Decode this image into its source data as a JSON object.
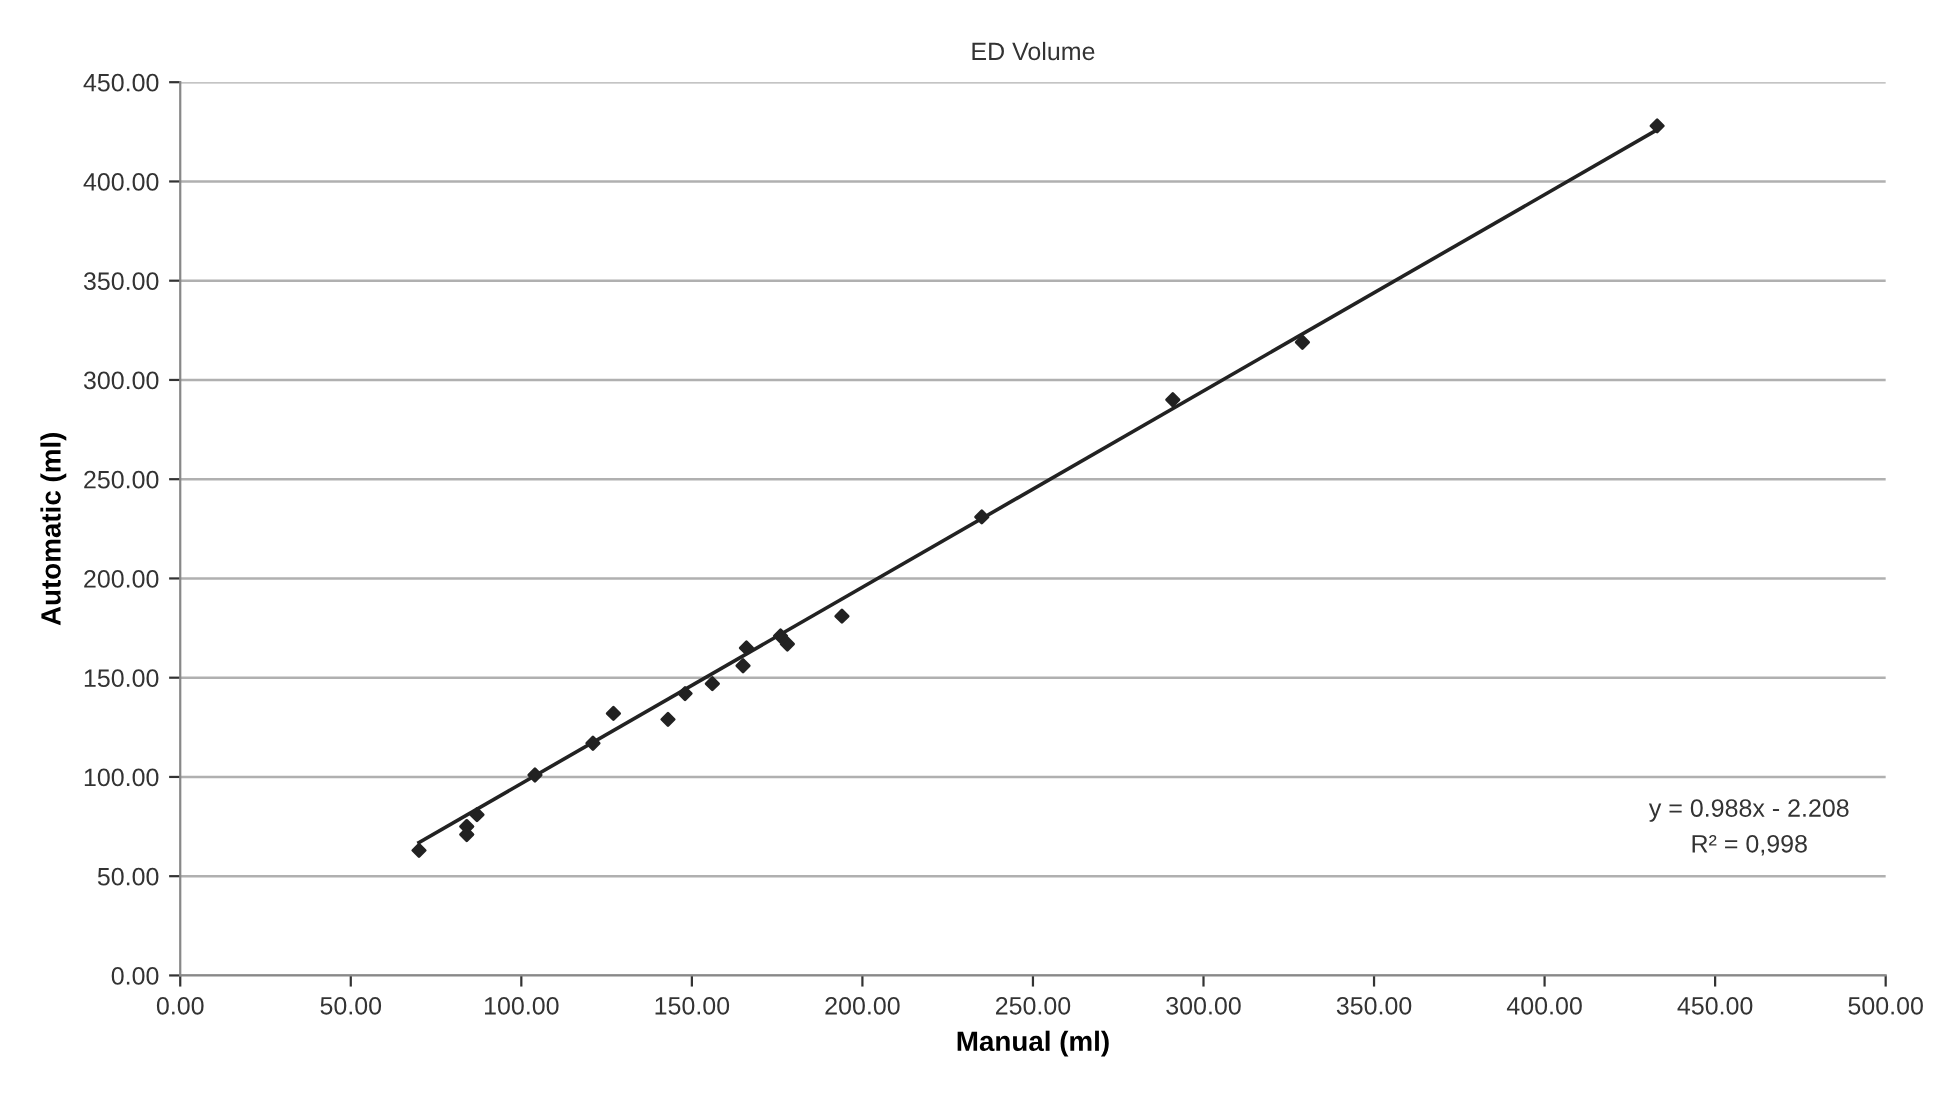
{
  "chart_data": {
    "type": "scatter",
    "title": "ED Volume",
    "xlabel": "Manual (ml)",
    "ylabel": "Automatic (ml)",
    "series": [
      {
        "color": "#222222",
        "marker": "diamond",
        "x": [
          70,
          84,
          84,
          87,
          104,
          121,
          127,
          143,
          148,
          156,
          165,
          166,
          176,
          178,
          194,
          235,
          291,
          329,
          433
        ],
        "values": [
          63,
          75,
          71,
          81,
          101,
          117,
          132,
          129,
          142,
          147,
          156,
          165,
          171,
          167,
          181,
          231,
          290,
          319,
          428
        ]
      },
      {
        "type": "line",
        "color": "#222222",
        "line_style": "solid",
        "x": [
          70,
          433
        ],
        "values": [
          67,
          426
        ]
      }
    ],
    "xlim": [
      0,
      500
    ],
    "ylim": [
      0,
      450
    ],
    "xticks": [
      {
        "value": 0,
        "label": "0.00"
      },
      {
        "value": 50,
        "label": "50.00"
      },
      {
        "value": 100,
        "label": "100.00"
      },
      {
        "value": 150,
        "label": "150.00"
      },
      {
        "value": 200,
        "label": "200.00"
      },
      {
        "value": 250,
        "label": "250.00"
      },
      {
        "value": 300,
        "label": "300.00"
      },
      {
        "value": 350,
        "label": "350.00"
      },
      {
        "value": 400,
        "label": "400.00"
      },
      {
        "value": 450,
        "label": "450.00"
      },
      {
        "value": 500,
        "label": "500.00"
      }
    ],
    "yticks": [
      {
        "value": 0,
        "label": "0.00"
      },
      {
        "value": 50,
        "label": "50.00"
      },
      {
        "value": 100,
        "label": "100.00"
      },
      {
        "value": 150,
        "label": "150.00"
      },
      {
        "value": 200,
        "label": "200.00"
      },
      {
        "value": 250,
        "label": "250.00"
      },
      {
        "value": 300,
        "label": "300.00"
      },
      {
        "value": 350,
        "label": "350.00"
      },
      {
        "value": 400,
        "label": "400.00"
      },
      {
        "value": 450,
        "label": "450.00"
      }
    ],
    "grid": "y",
    "legend": false,
    "annotations": [
      "y = 0.988x - 2.208",
      "R² = 0,998"
    ]
  }
}
